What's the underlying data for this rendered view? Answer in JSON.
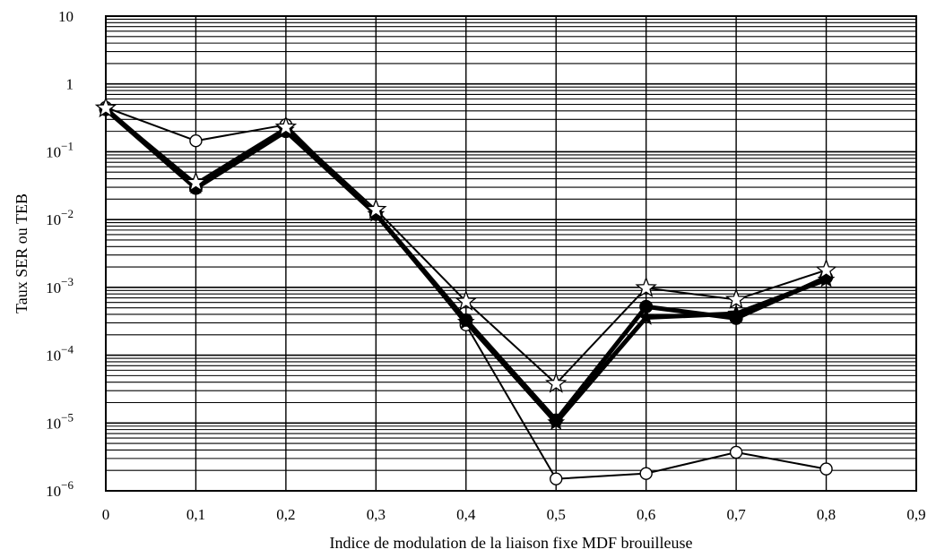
{
  "chart_data": {
    "type": "line",
    "title": "",
    "xlabel": "Indice de modulation de la liaison fixe MDF brouilleuse",
    "ylabel": "Taux SER ou TEB",
    "xlim": [
      0,
      0.9
    ],
    "ylim": [
      1e-06,
      10
    ],
    "yscale": "log",
    "grid": true,
    "x_ticks": [
      "0",
      "0,1",
      "0,2",
      "0,3",
      "0,4",
      "0,5",
      "0,6",
      "0,7",
      "0,8",
      "0,9"
    ],
    "y_ticks": [
      {
        "base": "10",
        "exp": ""
      },
      {
        "base": "1",
        "exp": ""
      },
      {
        "base": "10",
        "exp": "−1"
      },
      {
        "base": "10",
        "exp": "−2"
      },
      {
        "base": "10",
        "exp": "−3"
      },
      {
        "base": "10",
        "exp": "−4"
      },
      {
        "base": "10",
        "exp": "−5"
      },
      {
        "base": "10",
        "exp": "−6"
      }
    ],
    "y_tick_values": [
      10,
      1,
      0.1,
      0.01,
      0.001,
      0.0001,
      1e-05,
      1e-06
    ],
    "series": [
      {
        "marker": "open-circle",
        "line_width": 2,
        "x": [
          0,
          0.1,
          0.2,
          0.3,
          0.4,
          0.5,
          0.6,
          0.7,
          0.8
        ],
        "y": [
          0.45,
          0.145,
          0.25,
          0.012,
          0.00028,
          1.5e-06,
          1.8e-06,
          3.7e-06,
          2.1e-06
        ]
      },
      {
        "marker": "filled-circle",
        "line_width": 5,
        "x": [
          0,
          0.1,
          0.2,
          0.3,
          0.4,
          0.5,
          0.6,
          0.7,
          0.8
        ],
        "y": [
          0.42,
          0.029,
          0.2,
          0.012,
          0.00033,
          1.1e-05,
          0.00052,
          0.00035,
          0.0014
        ]
      },
      {
        "marker": "filled-star",
        "line_width": 5,
        "x": [
          0,
          0.1,
          0.2,
          0.3,
          0.4,
          0.5,
          0.6,
          0.7,
          0.8
        ],
        "y": [
          0.43,
          0.031,
          0.21,
          0.012,
          0.00031,
          1.02e-05,
          0.00036,
          0.00041,
          0.0013
        ]
      },
      {
        "marker": "open-star",
        "line_width": 2,
        "x": [
          0,
          0.1,
          0.2,
          0.3,
          0.4,
          0.5,
          0.6,
          0.7,
          0.8
        ],
        "y": [
          0.44,
          0.035,
          0.23,
          0.014,
          0.00062,
          3.8e-05,
          0.00098,
          0.00066,
          0.0018
        ]
      }
    ]
  }
}
